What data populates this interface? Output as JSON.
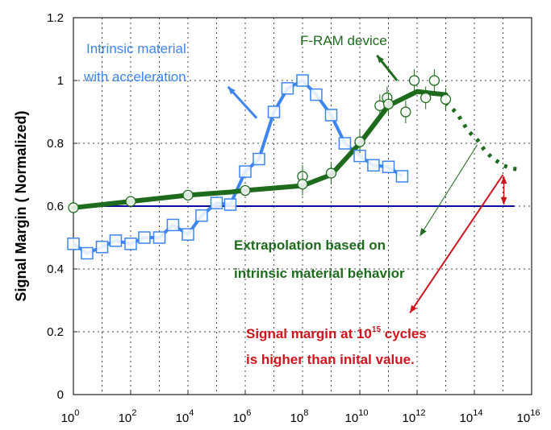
{
  "chart_data": {
    "type": "line",
    "title": "",
    "xlabel": "",
    "ylabel": "Signal Margin ( Normalized)",
    "x_scale": "log",
    "xlim": [
      1,
      1e+16
    ],
    "ylim": [
      0,
      1.2
    ],
    "grid": true,
    "x_ticks": [
      {
        "base": "10",
        "exp": "0",
        "value": 1
      },
      {
        "base": "10",
        "exp": "2",
        "value": 100.0
      },
      {
        "base": "10",
        "exp": "4",
        "value": 10000.0
      },
      {
        "base": "10",
        "exp": "6",
        "value": 1000000.0
      },
      {
        "base": "10",
        "exp": "8",
        "value": 100000000.0
      },
      {
        "base": "10",
        "exp": "10",
        "value": 10000000000.0
      },
      {
        "base": "10",
        "exp": "12",
        "value": 1000000000000.0
      },
      {
        "base": "10",
        "exp": "14",
        "value": 100000000000000.0
      },
      {
        "base": "10",
        "exp": "16",
        "value": 1e+16
      }
    ],
    "y_ticks": [
      "0",
      "0.2",
      "0.4",
      "0.6",
      "0.8",
      "1",
      "1.2"
    ],
    "colors": {
      "intrinsic": "#3d85f0",
      "fram": "#1e6b1e",
      "reference": "#0a0aa0",
      "highlight": "#d0141e"
    },
    "series": [
      {
        "name": "Intrinsic material with acceleration",
        "marker": "square",
        "x": [
          1,
          3.0,
          10.0,
          30.0,
          100.0,
          300.0,
          1000.0,
          3000.0,
          10000.0,
          30000.0,
          100000.0,
          300000.0,
          1000000.0,
          3000000.0,
          10000000.0,
          30000000.0,
          100000000.0,
          300000000.0,
          1000000000.0,
          3000000000.0,
          10000000000.0,
          30000000000.0,
          100000000000.0,
          300000000000.0
        ],
        "y": [
          0.48,
          0.45,
          0.47,
          0.49,
          0.48,
          0.5,
          0.5,
          0.54,
          0.51,
          0.57,
          0.61,
          0.605,
          0.71,
          0.75,
          0.9,
          0.975,
          1.0,
          0.955,
          0.89,
          0.8,
          0.76,
          0.73,
          0.725,
          0.695
        ]
      },
      {
        "name": "F-RAM device",
        "marker": "circle",
        "x": [
          1,
          100.0,
          10000.0,
          1000000.0,
          100000000.0,
          100000000.0,
          1000000000.0,
          10000000000.0,
          50000000000.0,
          90000000000.0,
          100000000000.0,
          400000000000.0,
          800000000000.0,
          2000000000000.0,
          4000000000000.0,
          10000000000000.0
        ],
        "y": [
          0.595,
          0.615,
          0.635,
          0.65,
          0.695,
          0.67,
          0.705,
          0.805,
          0.92,
          0.945,
          0.925,
          0.9,
          1.0,
          0.945,
          1.0,
          0.94
        ]
      },
      {
        "name": "F-RAM device fit",
        "style": "thick",
        "x": [
          1,
          100.0,
          10000.0,
          316228,
          1000000.0,
          100000000.0,
          1000000000.0,
          10000000000.0,
          100000000000.0,
          1000000000000.0,
          3000000000000.0,
          10000000000000.0
        ],
        "y": [
          0.595,
          0.615,
          0.635,
          0.645,
          0.65,
          0.665,
          0.7,
          0.8,
          0.92,
          0.965,
          0.96,
          0.955
        ]
      },
      {
        "name": "Extrapolation",
        "style": "dotted",
        "x": [
          10000000000000.0,
          25000000000000.0,
          60000000000000.0,
          130000000000000.0,
          220000000000000.0,
          400000000000000.0,
          1000000000000000.0,
          2000000000000000.0,
          4500000000000000.0
        ],
        "y": [
          0.93,
          0.895,
          0.84,
          0.81,
          0.78,
          0.755,
          0.73,
          0.72,
          0.716
        ]
      },
      {
        "name": "Initial value",
        "style": "reference",
        "x": [
          1,
          2500000000000000.0
        ],
        "y": [
          0.6,
          0.6
        ]
      }
    ],
    "annotations": [
      {
        "lines": [
          "Intrinsic material",
          "with acceleration"
        ],
        "color": "intrinsic",
        "bold": false
      },
      {
        "lines": [
          "F-RAM device"
        ],
        "color": "fram",
        "bold": false
      },
      {
        "lines": [
          "Extrapolation based on",
          "intrinsic material behavior"
        ],
        "color": "fram",
        "bold": true
      },
      {
        "lines": [
          "Signal margin at 10",
          "is higher than inital value."
        ],
        "superscript": "15",
        "after_sup": " cycles",
        "color": "highlight",
        "bold": true
      }
    ]
  }
}
